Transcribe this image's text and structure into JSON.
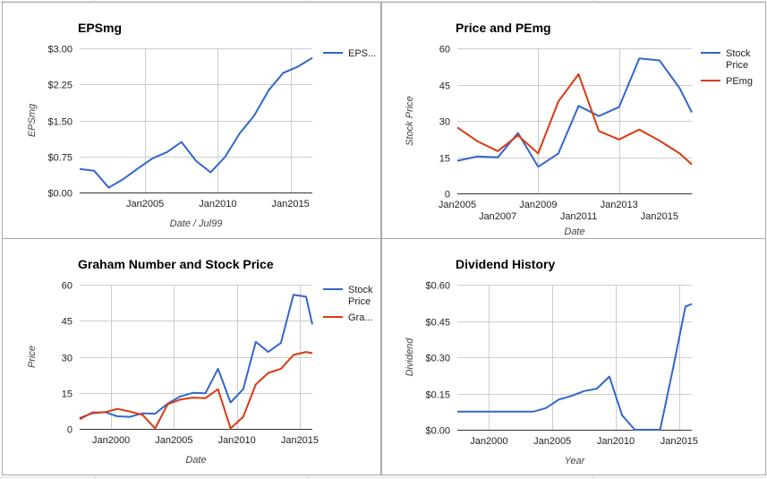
{
  "colors": {
    "blue": "#3366cc",
    "red": "#dc3912",
    "grid": "#cccccc",
    "axis": "#333333",
    "text": "#222222",
    "label": "#444444"
  },
  "chart_data": [
    {
      "id": "eps",
      "type": "line",
      "title": "EPSmg",
      "xlabel": "Date / Jul99",
      "ylabel": "EPSmg",
      "xlim": [
        2000.5,
        2016.5
      ],
      "ylim": [
        0,
        3
      ],
      "yticks": [
        {
          "v": 0,
          "label": "$0.00"
        },
        {
          "v": 0.75,
          "label": "$0.75"
        },
        {
          "v": 1.5,
          "label": "$1.50"
        },
        {
          "v": 2.25,
          "label": "$2.25"
        },
        {
          "v": 3,
          "label": "$3.00"
        }
      ],
      "xticks": [
        {
          "v": 2005,
          "label": "Jan2005"
        },
        {
          "v": 2010,
          "label": "Jan2010"
        },
        {
          "v": 2015,
          "label": "Jan2015"
        }
      ],
      "xgrid": [
        2005,
        2010,
        2015
      ],
      "legend": "right",
      "series": [
        {
          "name": "EPS...",
          "color": "#3366cc",
          "x": [
            2000.5,
            2001.5,
            2002.5,
            2003.5,
            2004.5,
            2005.5,
            2006.5,
            2007.5,
            2008.5,
            2009.5,
            2010.5,
            2011.5,
            2012.5,
            2013.5,
            2014.5,
            2015.5,
            2016.5
          ],
          "y": [
            0.49,
            0.45,
            0.1,
            0.28,
            0.5,
            0.71,
            0.84,
            1.05,
            0.66,
            0.42,
            0.74,
            1.23,
            1.6,
            2.13,
            2.49,
            2.62,
            2.8
          ]
        }
      ]
    },
    {
      "id": "price-pe",
      "type": "line",
      "title": "Price and PEmg",
      "xlabel": "Date",
      "ylabel": "Stock Price",
      "xlim": [
        2005,
        2016.6
      ],
      "ylim": [
        0,
        60
      ],
      "yticks": [
        {
          "v": 0,
          "label": "0"
        },
        {
          "v": 15,
          "label": "15"
        },
        {
          "v": 30,
          "label": "30"
        },
        {
          "v": 45,
          "label": "45"
        },
        {
          "v": 60,
          "label": "60"
        }
      ],
      "xticks": [
        {
          "v": 2005,
          "label": "Jan2005",
          "row": 1
        },
        {
          "v": 2007,
          "label": "Jan2007",
          "row": 2
        },
        {
          "v": 2009,
          "label": "Jan2009",
          "row": 1
        },
        {
          "v": 2011,
          "label": "Jan2011",
          "row": 2
        },
        {
          "v": 2013,
          "label": "Jan2013",
          "row": 1
        },
        {
          "v": 2015,
          "label": "Jan2015",
          "row": 2
        }
      ],
      "xgrid": [
        2009,
        2013
      ],
      "legend": "right",
      "series": [
        {
          "name": "Stock Price",
          "color": "#3366cc",
          "x": [
            2005,
            2006,
            2007,
            2008,
            2009,
            2010,
            2011,
            2012,
            2013,
            2014,
            2015,
            2016,
            2016.6
          ],
          "y": [
            13.5,
            15.3,
            14.9,
            25.0,
            11.0,
            16.5,
            36.2,
            32.0,
            35.7,
            55.8,
            55.0,
            43.5,
            33.5
          ]
        },
        {
          "name": "PEmg",
          "color": "#dc3912",
          "x": [
            2005,
            2006,
            2007,
            2008,
            2009,
            2010,
            2011,
            2012,
            2013,
            2014,
            2015,
            2016,
            2016.6
          ],
          "y": [
            27.3,
            21.5,
            17.5,
            24.0,
            16.5,
            38.0,
            49.3,
            25.8,
            22.3,
            26.4,
            21.8,
            16.5,
            12.0
          ]
        }
      ]
    },
    {
      "id": "graham",
      "type": "line",
      "title": "Graham Number and Stock Price",
      "xlabel": "Date",
      "ylabel": "Price",
      "xlim": [
        1997.5,
        2016
      ],
      "ylim": [
        0,
        60
      ],
      "yticks": [
        {
          "v": 0,
          "label": "0"
        },
        {
          "v": 15,
          "label": "15"
        },
        {
          "v": 30,
          "label": "30"
        },
        {
          "v": 45,
          "label": "45"
        },
        {
          "v": 60,
          "label": "60"
        }
      ],
      "xticks": [
        {
          "v": 2000,
          "label": "Jan2000"
        },
        {
          "v": 2005,
          "label": "Jan2005"
        },
        {
          "v": 2010,
          "label": "Jan2010"
        },
        {
          "v": 2015,
          "label": "Jan2015"
        }
      ],
      "xgrid": [
        2000,
        2005,
        2010,
        2015
      ],
      "legend": "right",
      "series": [
        {
          "name": "Stock Price",
          "color": "#3366cc",
          "x": [
            1997.5,
            1998.5,
            1999.5,
            2000.5,
            2001.5,
            2002.5,
            2003.5,
            2004.5,
            2005.5,
            2006.5,
            2007.5,
            2008.5,
            2009.5,
            2010.5,
            2011.5,
            2012.5,
            2013.5,
            2014.5,
            2015.5,
            2016
          ],
          "y": [
            4.5,
            6.5,
            7.0,
            5.2,
            5.0,
            6.5,
            6.3,
            10.5,
            13.5,
            15.0,
            14.8,
            25.0,
            11.0,
            16.5,
            36.2,
            32.0,
            35.8,
            55.8,
            55.0,
            43.5
          ]
        },
        {
          "name": "Gra...",
          "color": "#dc3912",
          "x": [
            1997.5,
            1998.5,
            1999.5,
            2000.5,
            2001.5,
            2002.5,
            2003.5,
            2004.5,
            2005.5,
            2006.5,
            2007.5,
            2008.5,
            2009.5,
            2010.5,
            2011.5,
            2012.5,
            2013.5,
            2014.5,
            2015.5,
            2016
          ],
          "y": [
            4.0,
            6.8,
            6.9,
            8.3,
            7.2,
            5.8,
            0.2,
            10.3,
            12.2,
            13.0,
            12.8,
            16.5,
            0.2,
            5.0,
            18.5,
            23.3,
            25.0,
            30.8,
            32.0,
            31.5
          ]
        }
      ]
    },
    {
      "id": "dividend",
      "type": "line",
      "title": "Dividend History",
      "xlabel": "Year",
      "ylabel": "Dividend",
      "xlim": [
        1997.5,
        2016
      ],
      "ylim": [
        0,
        0.6
      ],
      "yticks": [
        {
          "v": 0,
          "label": "$0.00"
        },
        {
          "v": 0.15,
          "label": "$0.15"
        },
        {
          "v": 0.3,
          "label": "$0.30"
        },
        {
          "v": 0.45,
          "label": "$0.45"
        },
        {
          "v": 0.6,
          "label": "$0.60"
        }
      ],
      "xticks": [
        {
          "v": 2000,
          "label": "Jan2000"
        },
        {
          "v": 2005,
          "label": "Jan2005"
        },
        {
          "v": 2010,
          "label": "Jan2010"
        },
        {
          "v": 2015,
          "label": "Jan2015"
        }
      ],
      "xgrid": [
        2000,
        2005,
        2010,
        2015
      ],
      "legend": "none",
      "series": [
        {
          "name": "",
          "color": "#3366cc",
          "x": [
            1997.5,
            1998.5,
            1999.5,
            2000.5,
            2001.5,
            2002.5,
            2003.5,
            2004.5,
            2005.5,
            2006.5,
            2007.5,
            2008.5,
            2009.5,
            2010.5,
            2011.5,
            2012.5,
            2013.5,
            2014.5,
            2015.5,
            2016
          ],
          "y": [
            0.075,
            0.075,
            0.075,
            0.075,
            0.075,
            0.075,
            0.075,
            0.09,
            0.125,
            0.14,
            0.16,
            0.17,
            0.22,
            0.06,
            0.0,
            0.0,
            0.0,
            0.25,
            0.51,
            0.52
          ]
        }
      ]
    }
  ]
}
